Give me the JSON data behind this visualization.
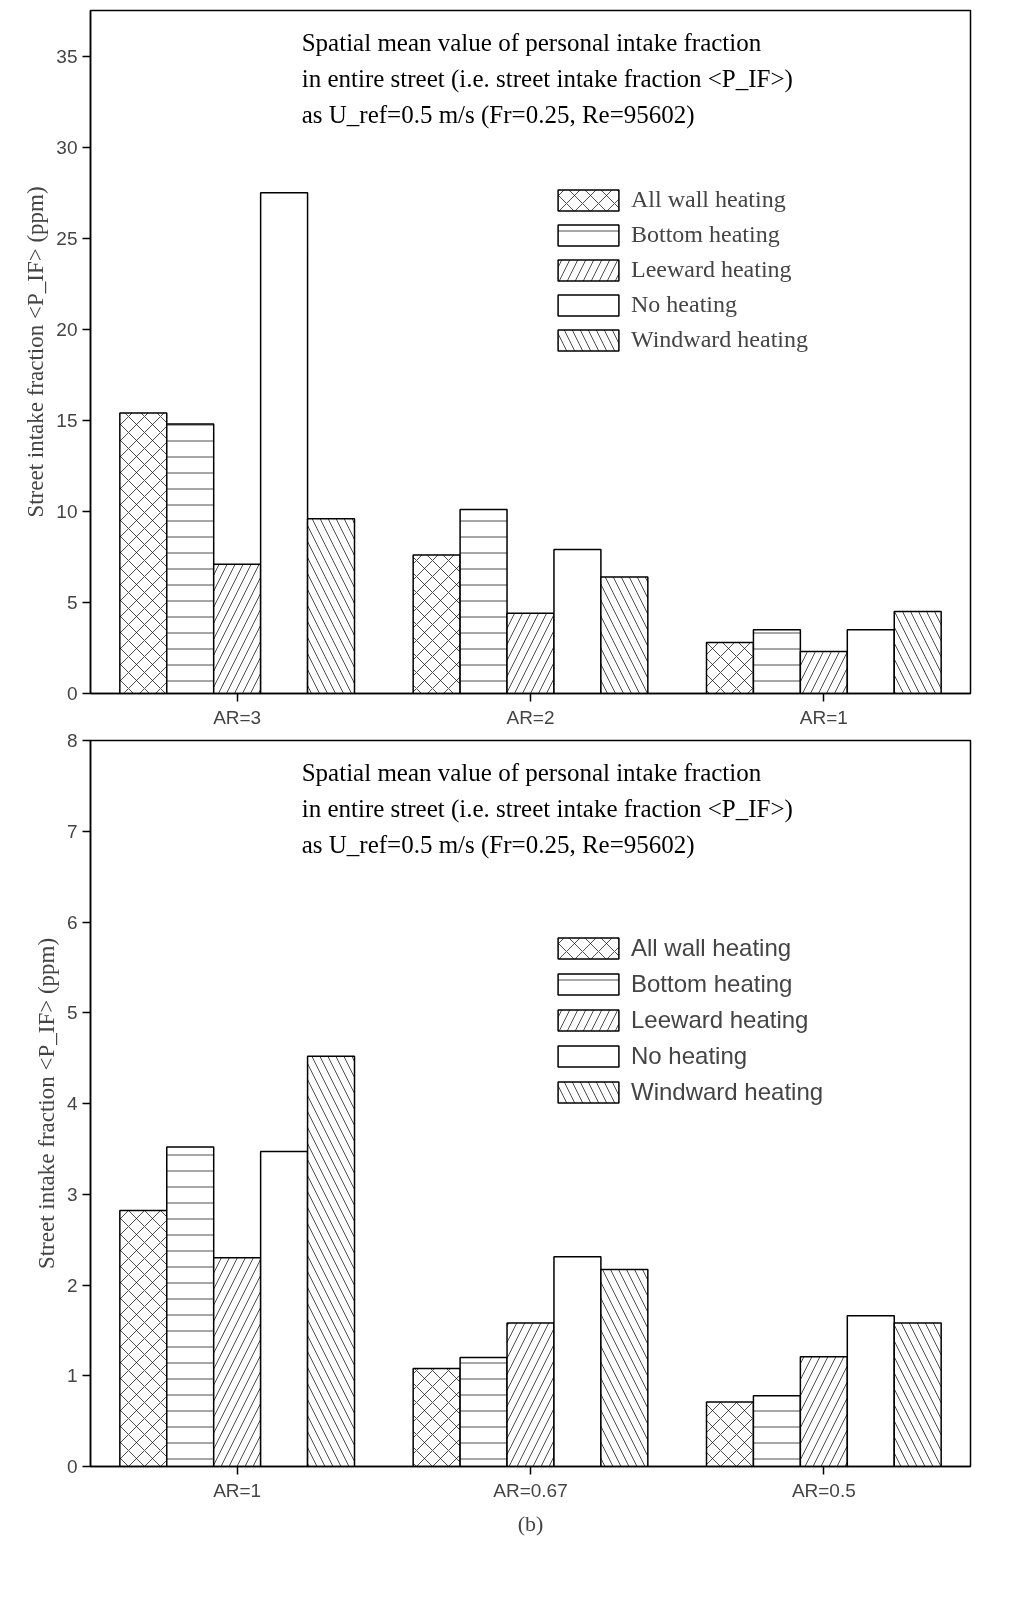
{
  "chart_data": [
    {
      "type": "bar",
      "title": "Spatial mean value of personal intake fraction\nin entire street (i.e. street intake fraction <P_IF>)\nas U_ref=0.5 m/s (Fr=0.25, Re=95602)",
      "ylabel": "Street intake fraction <P_IF> (ppm)",
      "categories": [
        "AR=3",
        "AR=2",
        "AR=1"
      ],
      "ylim": [
        0,
        37.5
      ],
      "yticks": [
        0,
        5,
        10,
        15,
        20,
        25,
        30,
        35
      ],
      "legend": "top right",
      "grid": false,
      "series": [
        {
          "name": "All wall heating",
          "color": "#ffffff",
          "values": [
            15.4,
            7.6,
            2.8
          ]
        },
        {
          "name": "Bottom heating",
          "color": "#ffffff",
          "values": [
            14.8,
            10.1,
            3.5
          ]
        },
        {
          "name": "Leeward heating",
          "color": "#ffffff",
          "values": [
            7.1,
            4.4,
            2.3
          ]
        },
        {
          "name": "No heating",
          "color": "#ffffff",
          "values": [
            27.5,
            7.9,
            3.5
          ]
        },
        {
          "name": "Windward heating",
          "color": "#ffffff",
          "values": [
            9.6,
            6.4,
            4.5
          ]
        }
      ]
    },
    {
      "type": "bar",
      "title": "Spatial mean value of personal intake fraction\nin entire street (i.e. street intake fraction <P_IF>)\nas U_ref=0.5 m/s (Fr=0.25, Re=95602)",
      "ylabel": "Street intake fraction <P_IF> (ppm)",
      "categories": [
        "AR=1",
        "AR=0.67",
        "AR=0.5"
      ],
      "ylim": [
        0,
        8
      ],
      "yticks": [
        0,
        1,
        2,
        3,
        4,
        5,
        6,
        7,
        8
      ],
      "legend": "top right",
      "grid": false,
      "annotations": [
        "(b)"
      ],
      "series": [
        {
          "name": "All wall heating",
          "color": "#ffffff",
          "values": [
            2.82,
            1.08,
            0.71
          ]
        },
        {
          "name": "Bottom heating",
          "color": "#ffffff",
          "values": [
            3.52,
            1.2,
            0.78
          ]
        },
        {
          "name": "Leeward heating",
          "color": "#ffffff",
          "values": [
            2.3,
            1.58,
            1.21
          ]
        },
        {
          "name": "No heating",
          "color": "#ffffff",
          "values": [
            3.47,
            2.31,
            1.66
          ]
        },
        {
          "name": "Windward heating",
          "color": "#ffffff",
          "values": [
            4.52,
            2.17,
            1.58
          ]
        }
      ]
    }
  ]
}
